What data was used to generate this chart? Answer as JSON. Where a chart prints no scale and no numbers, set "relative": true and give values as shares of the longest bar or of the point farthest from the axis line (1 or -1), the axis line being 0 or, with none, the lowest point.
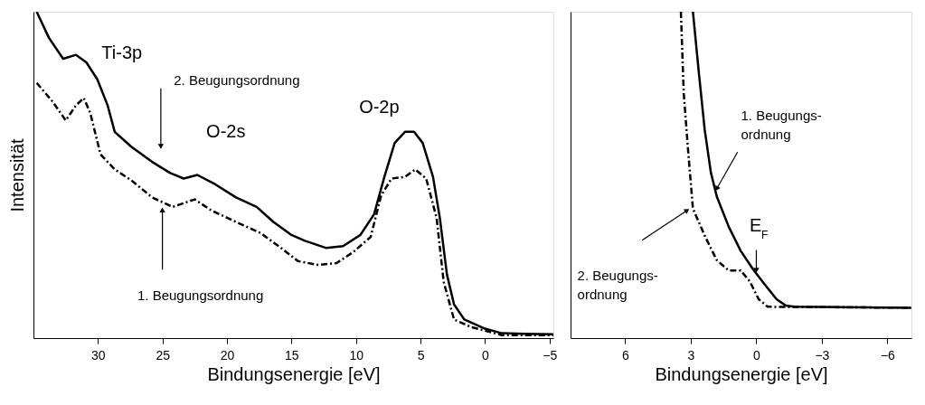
{
  "chart_data": [
    {
      "type": "line",
      "xlabel": "Bindungsenergie [eV]",
      "ylabel": "Intensität",
      "relative": true,
      "xlim": [
        35,
        -5.3
      ],
      "xticks": [
        30,
        25,
        20,
        15,
        10,
        5,
        0,
        -5
      ],
      "tick_labels": "x",
      "grid": false,
      "series": [
        {
          "color": "#000000",
          "line_style": "solid",
          "x": [
            34.75,
            33.8,
            32.7,
            31.7,
            30.9,
            30.05,
            29.25,
            28.7,
            27.4,
            25.8,
            24.4,
            23.35,
            22.3,
            20.9,
            19.3,
            17.7,
            16.4,
            15.0,
            14.0,
            12.3,
            11.0,
            9.66,
            8.6,
            7.8,
            7.0,
            6.2,
            5.5,
            4.83,
            4.03,
            3.5,
            2.95,
            2.4,
            1.6,
            0,
            -1.3,
            -3,
            -5.3
          ],
          "values": [
            1.0,
            0.92,
            0.856,
            0.868,
            0.845,
            0.793,
            0.713,
            0.632,
            0.586,
            0.54,
            0.506,
            0.489,
            0.5,
            0.471,
            0.431,
            0.402,
            0.356,
            0.316,
            0.299,
            0.276,
            0.282,
            0.316,
            0.379,
            0.494,
            0.598,
            0.632,
            0.632,
            0.598,
            0.494,
            0.368,
            0.195,
            0.103,
            0.057,
            0.029,
            0.015,
            0.013,
            0.012
          ]
        },
        {
          "color": "#000000",
          "line_style": "dashed",
          "x": [
            34.75,
            33.5,
            32.5,
            31.7,
            31.1,
            30.6,
            29.8,
            28.7,
            27.4,
            25.8,
            24.2,
            22.5,
            21.2,
            19.3,
            17.4,
            15.8,
            14.5,
            12.9,
            11.5,
            10.2,
            8.86,
            8.05,
            7.25,
            6.2,
            5.4,
            4.56,
            3.75,
            3.2,
            2.4,
            1.1,
            0,
            -1.3,
            -3,
            -5.3
          ],
          "values": [
            0.782,
            0.724,
            0.667,
            0.713,
            0.736,
            0.69,
            0.563,
            0.517,
            0.483,
            0.431,
            0.402,
            0.425,
            0.391,
            0.356,
            0.322,
            0.276,
            0.236,
            0.224,
            0.23,
            0.264,
            0.31,
            0.437,
            0.489,
            0.494,
            0.517,
            0.489,
            0.368,
            0.172,
            0.057,
            0.034,
            0.023,
            0.009,
            0.009,
            0.009
          ]
        }
      ],
      "annotations": [
        "Ti-3p",
        "2. Beugungsordnung",
        "O-2s",
        "O-2p",
        "1. Beugungsordnung"
      ]
    },
    {
      "type": "line",
      "xlabel": "Bindungsenergie [eV]",
      "relative": true,
      "xlim": [
        8.5,
        -7.1
      ],
      "xticks": [
        6,
        3,
        0,
        -3,
        -6
      ],
      "tick_labels": "x",
      "grid": false,
      "series": [
        {
          "color": "#000000",
          "line_style": "solid",
          "x": [
            2.9,
            2.63,
            2.36,
            2.08,
            1.81,
            1.26,
            0.71,
            0.16,
            -0.38,
            -0.93,
            -1.34,
            -1.75,
            -7.08
          ],
          "values": [
            1.0,
            0.814,
            0.638,
            0.508,
            0.434,
            0.341,
            0.267,
            0.212,
            0.165,
            0.119,
            0.1,
            0.096,
            0.093
          ]
        },
        {
          "color": "#000000",
          "line_style": "dashed",
          "x": [
            3.45,
            3.32,
            3.11,
            2.9,
            2.36,
            1.81,
            1.26,
            0.71,
            0.3,
            -0.11,
            -0.52,
            -7.08
          ],
          "values": [
            1.0,
            0.75,
            0.566,
            0.397,
            0.314,
            0.239,
            0.207,
            0.207,
            0.174,
            0.119,
            0.096,
            0.093
          ]
        }
      ],
      "annotations": [
        "1. Beugungs-\nordnung",
        "E$_{F}$",
        "2. Beugungs-\nordnung"
      ]
    }
  ]
}
